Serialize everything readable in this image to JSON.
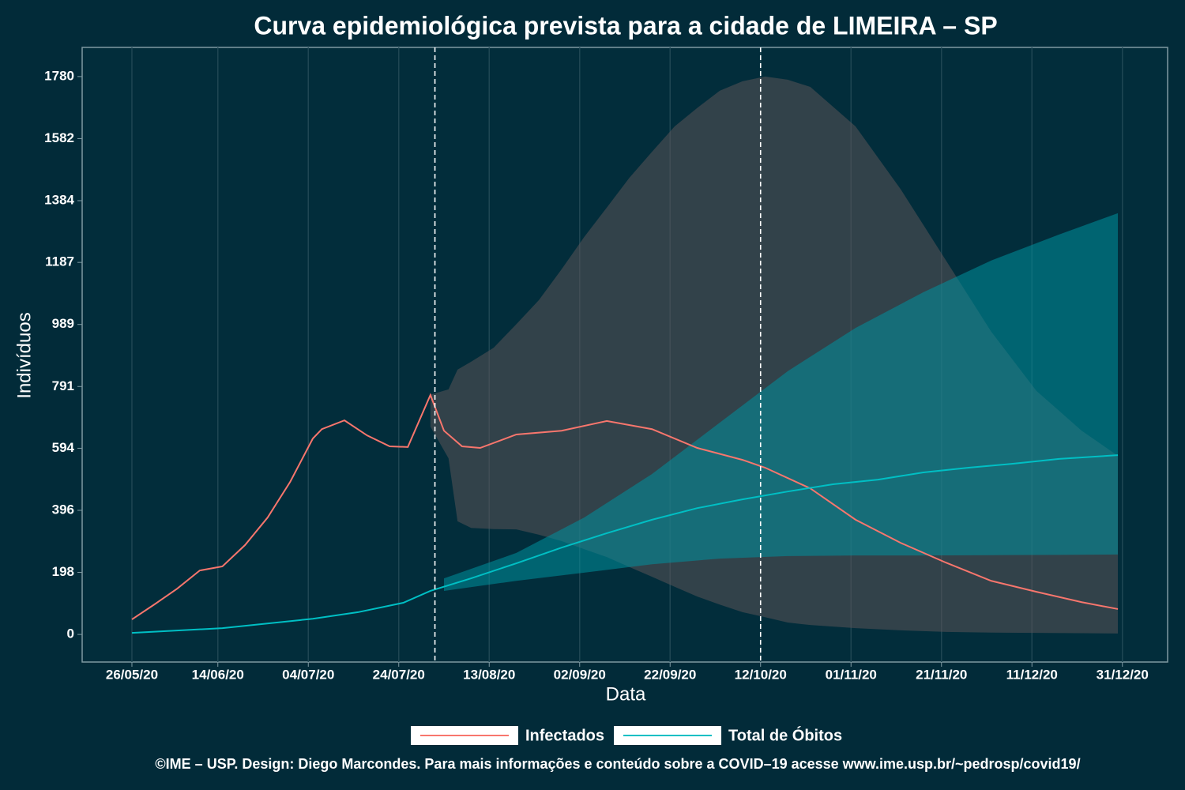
{
  "chart_data": {
    "type": "line",
    "title": "Curva epidemiológica prevista para a cidade de LIMEIRA – SP",
    "x_label": "Data",
    "y_label": "Indivíduos",
    "caption": "©IME – USP. Design: Diego Marcondes. Para mais informações e conteúdo sobre a COVID–19 acesse www.ime.usp.br/~pedrosp/covid19/",
    "xlim": [
      "15/05/20",
      "10/01/21"
    ],
    "xticks": [
      "26/05/20",
      "14/06/20",
      "04/07/20",
      "24/07/20",
      "13/08/20",
      "02/09/20",
      "22/09/20",
      "12/10/20",
      "01/11/20",
      "21/11/20",
      "11/12/20",
      "31/12/20"
    ],
    "ylim": [
      -88,
      1873
    ],
    "yticks": [
      0,
      198,
      396,
      594,
      791,
      989,
      1187,
      1384,
      1582,
      1780
    ],
    "grid": "x",
    "vlines": [
      "01/08/20",
      "12/10/20"
    ],
    "series": [
      {
        "name": "Infectados",
        "color": "#f8766d",
        "x": [
          "26/05/20",
          "31/05/20",
          "05/06/20",
          "10/06/20",
          "15/06/20",
          "20/06/20",
          "25/06/20",
          "30/06/20",
          "05/07/20",
          "07/07/20",
          "12/07/20",
          "17/07/20",
          "22/07/20",
          "26/07/20",
          "31/07/20",
          "03/08/20",
          "07/08/20",
          "11/08/20",
          "19/08/20",
          "29/08/20",
          "08/09/20",
          "18/09/20",
          "28/09/20",
          "08/10/20",
          "13/10/20",
          "23/10/20",
          "02/11/20",
          "12/11/20",
          "22/11/20",
          "02/12/20",
          "12/12/20",
          "22/12/20",
          "30/12/20"
        ],
        "values": [
          48,
          96,
          146,
          204,
          217,
          285,
          373,
          487,
          625,
          655,
          683,
          635,
          600,
          598,
          764,
          650,
          600,
          595,
          638,
          650,
          681,
          655,
          595,
          557,
          532,
          466,
          366,
          292,
          229,
          171,
          136,
          103,
          81
        ],
        "band": {
          "color": "#5b5357",
          "x": [
            "31/07/20",
            "04/08/20",
            "06/08/20",
            "09/08/20",
            "14/08/20",
            "19/08/20",
            "24/08/20",
            "29/08/20",
            "03/09/20",
            "08/09/20",
            "13/09/20",
            "18/09/20",
            "23/09/20",
            "28/09/20",
            "03/10/20",
            "08/10/20",
            "13/10/20",
            "18/10/20",
            "23/10/20",
            "02/11/20",
            "12/11/20",
            "22/11/20",
            "02/12/20",
            "12/12/20",
            "22/12/20",
            "30/12/20"
          ],
          "upper": [
            765,
            782,
            845,
            870,
            915,
            990,
            1067,
            1165,
            1268,
            1362,
            1457,
            1540,
            1621,
            1680,
            1735,
            1765,
            1780,
            1770,
            1747,
            1621,
            1420,
            1193,
            966,
            777,
            650,
            570
          ],
          "lower": [
            663,
            562,
            361,
            340,
            336,
            335,
            318,
            298,
            272,
            247,
            215,
            184,
            152,
            121,
            95,
            71,
            55,
            38,
            30,
            20,
            13,
            8,
            6,
            5,
            4,
            3
          ]
        }
      },
      {
        "name": "Total de Óbitos",
        "color": "#00bfc4",
        "x": [
          "26/05/20",
          "15/06/20",
          "05/07/20",
          "15/07/20",
          "25/07/20",
          "31/07/20",
          "09/08/20",
          "19/08/20",
          "29/08/20",
          "08/09/20",
          "18/09/20",
          "28/09/20",
          "08/10/20",
          "18/10/20",
          "28/10/20",
          "07/11/20",
          "17/11/20",
          "27/11/20",
          "07/12/20",
          "17/12/20",
          "30/12/20"
        ],
        "values": [
          5,
          20,
          50,
          71,
          101,
          139,
          179,
          227,
          277,
          323,
          366,
          403,
          431,
          456,
          479,
          494,
          517,
          532,
          545,
          560,
          572
        ],
        "band": {
          "color": "#00919e",
          "x": [
            "03/08/20",
            "19/08/20",
            "03/09/20",
            "18/09/20",
            "03/10/20",
            "18/10/20",
            "02/11/20",
            "17/11/20",
            "02/12/20",
            "17/12/20",
            "30/12/20"
          ],
          "upper": [
            179,
            260,
            373,
            512,
            676,
            840,
            978,
            1092,
            1193,
            1276,
            1344
          ],
          "lower": [
            139,
            171,
            197,
            224,
            242,
            250,
            252,
            252,
            253,
            254,
            255
          ]
        }
      }
    ]
  }
}
